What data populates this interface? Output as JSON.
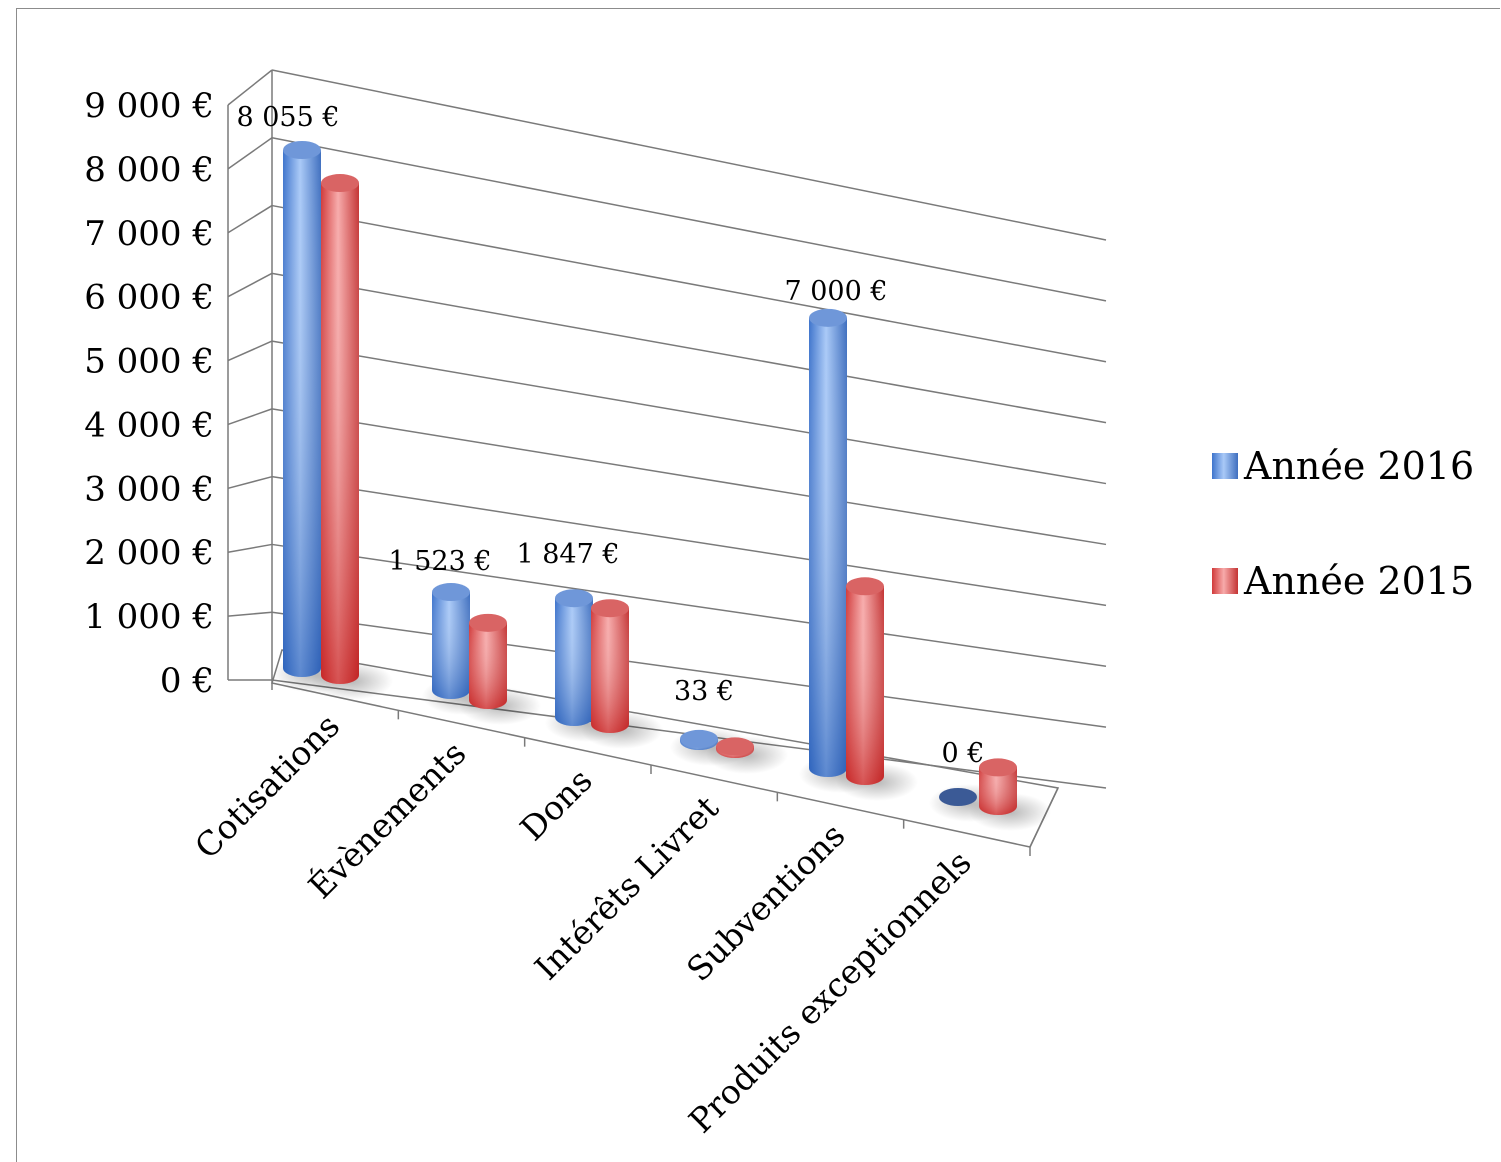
{
  "chart_data": {
    "type": "bar",
    "style": "3d-cylinder",
    "title": "",
    "xlabel": "",
    "ylabel": "",
    "ylim": [
      0,
      9000
    ],
    "grid": true,
    "legend_position": "right",
    "categories": [
      "Cotisations",
      "Évènements",
      "Dons",
      "Intérêts Livret",
      "Subventions",
      "Produits exceptionnels"
    ],
    "y_ticks": [
      "0 €",
      "1 000 €",
      "2 000 €",
      "3 000 €",
      "4 000 €",
      "5 000 €",
      "6 000 €",
      "7 000 €",
      "8 000 €",
      "9 000 €"
    ],
    "series": [
      {
        "name": "Année 2016",
        "color": "#4a7fd6",
        "values": [
          8055,
          1523,
          1847,
          33,
          7000,
          0
        ],
        "data_labels": [
          "8 055 €",
          "1 523 €",
          "1 847 €",
          "33 €",
          "7 000 €",
          "0 €"
        ]
      },
      {
        "name": "Année 2015",
        "color": "#e04848",
        "values": [
          7650,
          1200,
          1800,
          40,
          2950,
          600
        ]
      }
    ]
  }
}
